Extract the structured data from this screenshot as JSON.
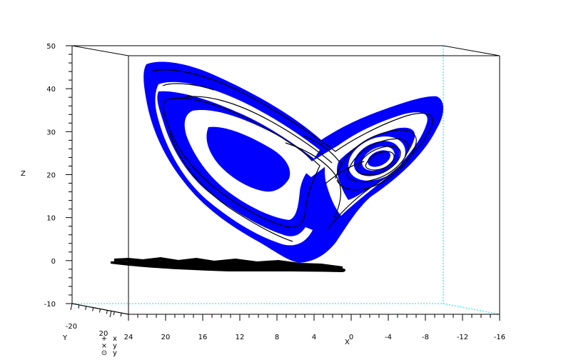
{
  "chart_data": {
    "type": "scatter",
    "title": "",
    "xlabel": "X",
    "ylabel": "Y",
    "zlabel": "Z",
    "z_ticks": [
      "50",
      "40",
      "30",
      "20",
      "10",
      "0",
      "-10"
    ],
    "z_range": [
      -10,
      50
    ],
    "x_ticks": [
      "24",
      "20",
      "16",
      "12",
      "8",
      "4",
      "0",
      "-4",
      "-8",
      "-12",
      "-16"
    ],
    "x_range": [
      24,
      -16
    ],
    "y_ticks": [
      "-20",
      "20"
    ],
    "legend": [
      "x",
      "y",
      "y"
    ],
    "legend_markers": [
      "+",
      "×",
      "⊙"
    ],
    "colors": {
      "attractor": "#0000ff",
      "trajectory": "#000000",
      "projection": "#000000",
      "hidden_edges": "#00e5e5",
      "box": "#000000"
    },
    "series": [
      {
        "kind": "surface",
        "description_points": [
          [
            21.5,
            44.5
          ],
          [
            23,
            32
          ],
          [
            18,
            15
          ],
          [
            13,
            6
          ],
          [
            6,
            0
          ],
          [
            3,
            1
          ],
          [
            0,
            9
          ],
          [
            -4,
            22
          ],
          [
            -9,
            28
          ],
          [
            -11,
            33
          ],
          [
            -10,
            38
          ],
          [
            -6,
            37
          ],
          [
            -1,
            29
          ],
          [
            7,
            23
          ],
          [
            13,
            30
          ],
          [
            19,
            43
          ]
        ]
      },
      {
        "kind": "trajectory",
        "description_points": [
          [
            20,
            39
          ],
          [
            21,
            30
          ],
          [
            17,
            17
          ],
          [
            11,
            9
          ],
          [
            6,
            5
          ],
          [
            4,
            12
          ],
          [
            6,
            19
          ],
          [
            3,
            24
          ],
          [
            -1,
            26
          ],
          [
            -5,
            28
          ],
          [
            -8,
            30
          ],
          [
            -6,
            33
          ],
          [
            -1,
            31
          ],
          [
            6,
            27
          ],
          [
            13,
            31
          ],
          [
            18,
            38
          ]
        ]
      },
      {
        "kind": "projection",
        "z": -0.5,
        "x_extent": [
          20,
          -1
        ]
      }
    ]
  }
}
